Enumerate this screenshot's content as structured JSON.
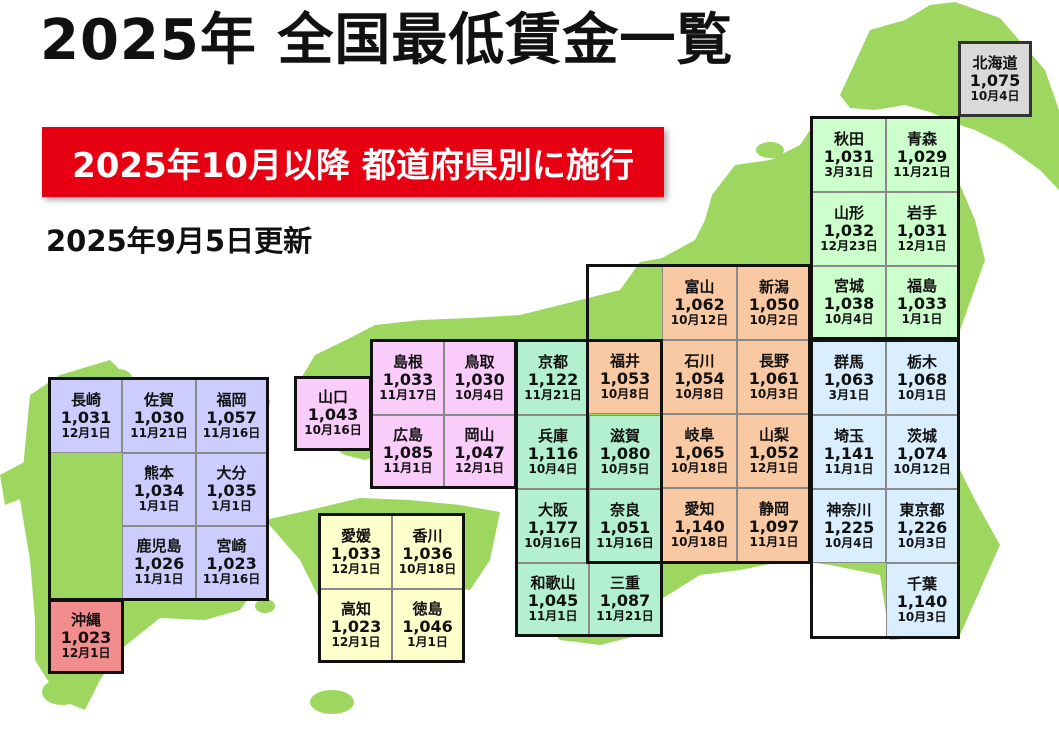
{
  "title": "2025年 全国最低賃金一覧",
  "banner": "2025年10月以降 都道府県別に施行",
  "updated": "2025年9月5日更新",
  "colors": {
    "land": "#9ed75f",
    "banner_red": "#e60012",
    "hokkaido": "#d9d9d9",
    "tohoku": "#ccffcc",
    "chubu": "#f9c9a4",
    "kanto": "#d9efff",
    "kinki": "#b3f0cf",
    "chugoku": "#f9ccf9",
    "shikoku": "#ffffcc",
    "kyushu": "#ccccff",
    "okinawa": "#f28d8d"
  },
  "prefectures": [
    {
      "key": "hokkaido",
      "name": "北海道",
      "wage": "1,075",
      "date": "10月4日",
      "region": "hokkaido"
    },
    {
      "key": "akita",
      "name": "秋田",
      "wage": "1,031",
      "date": "3月31日",
      "region": "tohoku"
    },
    {
      "key": "aomori",
      "name": "青森",
      "wage": "1,029",
      "date": "11月21日",
      "region": "tohoku"
    },
    {
      "key": "yamagata",
      "name": "山形",
      "wage": "1,032",
      "date": "12月23日",
      "region": "tohoku"
    },
    {
      "key": "iwate",
      "name": "岩手",
      "wage": "1,031",
      "date": "12月1日",
      "region": "tohoku"
    },
    {
      "key": "miyagi",
      "name": "宮城",
      "wage": "1,038",
      "date": "10月4日",
      "region": "tohoku"
    },
    {
      "key": "fukushima",
      "name": "福島",
      "wage": "1,033",
      "date": "1月1日",
      "region": "tohoku"
    },
    {
      "key": "toyama",
      "name": "富山",
      "wage": "1,062",
      "date": "10月12日",
      "region": "chubu"
    },
    {
      "key": "niigata",
      "name": "新潟",
      "wage": "1,050",
      "date": "10月2日",
      "region": "chubu"
    },
    {
      "key": "fukui",
      "name": "福井",
      "wage": "1,053",
      "date": "10月8日",
      "region": "chubu"
    },
    {
      "key": "ishikawa",
      "name": "石川",
      "wage": "1,054",
      "date": "10月8日",
      "region": "chubu"
    },
    {
      "key": "nagano",
      "name": "長野",
      "wage": "1,061",
      "date": "10月3日",
      "region": "chubu"
    },
    {
      "key": "gifu",
      "name": "岐阜",
      "wage": "1,065",
      "date": "10月18日",
      "region": "chubu"
    },
    {
      "key": "yamanashi",
      "name": "山梨",
      "wage": "1,052",
      "date": "12月1日",
      "region": "chubu"
    },
    {
      "key": "aichi",
      "name": "愛知",
      "wage": "1,140",
      "date": "10月18日",
      "region": "chubu"
    },
    {
      "key": "shizuoka",
      "name": "静岡",
      "wage": "1,097",
      "date": "11月1日",
      "region": "chubu"
    },
    {
      "key": "gunma",
      "name": "群馬",
      "wage": "1,063",
      "date": "3月1日",
      "region": "kanto"
    },
    {
      "key": "tochigi",
      "name": "栃木",
      "wage": "1,068",
      "date": "10月1日",
      "region": "kanto"
    },
    {
      "key": "saitama",
      "name": "埼玉",
      "wage": "1,141",
      "date": "11月1日",
      "region": "kanto"
    },
    {
      "key": "ibaraki",
      "name": "茨城",
      "wage": "1,074",
      "date": "10月12日",
      "region": "kanto"
    },
    {
      "key": "kanagawa",
      "name": "神奈川",
      "wage": "1,225",
      "date": "10月4日",
      "region": "kanto"
    },
    {
      "key": "tokyo",
      "name": "東京都",
      "wage": "1,226",
      "date": "10月3日",
      "region": "kanto"
    },
    {
      "key": "chiba",
      "name": "千葉",
      "wage": "1,140",
      "date": "10月3日",
      "region": "kanto"
    },
    {
      "key": "kyoto",
      "name": "京都",
      "wage": "1,122",
      "date": "11月21日",
      "region": "kinki"
    },
    {
      "key": "hyogo",
      "name": "兵庫",
      "wage": "1,116",
      "date": "10月4日",
      "region": "kinki"
    },
    {
      "key": "shiga",
      "name": "滋賀",
      "wage": "1,080",
      "date": "10月5日",
      "region": "kinki"
    },
    {
      "key": "osaka",
      "name": "大阪",
      "wage": "1,177",
      "date": "10月16日",
      "region": "kinki"
    },
    {
      "key": "nara",
      "name": "奈良",
      "wage": "1,051",
      "date": "11月16日",
      "region": "kinki"
    },
    {
      "key": "wakayama",
      "name": "和歌山",
      "wage": "1,045",
      "date": "11月1日",
      "region": "kinki"
    },
    {
      "key": "mie",
      "name": "三重",
      "wage": "1,087",
      "date": "11月21日",
      "region": "kinki"
    },
    {
      "key": "shimane",
      "name": "島根",
      "wage": "1,033",
      "date": "11月17日",
      "region": "chugoku"
    },
    {
      "key": "tottori",
      "name": "鳥取",
      "wage": "1,030",
      "date": "10月4日",
      "region": "chugoku"
    },
    {
      "key": "yamaguchi",
      "name": "山口",
      "wage": "1,043",
      "date": "10月16日",
      "region": "chugoku"
    },
    {
      "key": "hiroshima",
      "name": "広島",
      "wage": "1,085",
      "date": "11月1日",
      "region": "chugoku"
    },
    {
      "key": "okayama",
      "name": "岡山",
      "wage": "1,047",
      "date": "12月1日",
      "region": "chugoku"
    },
    {
      "key": "ehime",
      "name": "愛媛",
      "wage": "1,033",
      "date": "12月1日",
      "region": "shikoku"
    },
    {
      "key": "kagawa",
      "name": "香川",
      "wage": "1,036",
      "date": "10月18日",
      "region": "shikoku"
    },
    {
      "key": "kochi",
      "name": "高知",
      "wage": "1,023",
      "date": "12月1日",
      "region": "shikoku"
    },
    {
      "key": "tokushima",
      "name": "徳島",
      "wage": "1,046",
      "date": "1月1日",
      "region": "shikoku"
    },
    {
      "key": "nagasaki",
      "name": "長崎",
      "wage": "1,031",
      "date": "12月1日",
      "region": "kyushu"
    },
    {
      "key": "saga",
      "name": "佐賀",
      "wage": "1,030",
      "date": "11月21日",
      "region": "kyushu"
    },
    {
      "key": "fukuoka",
      "name": "福岡",
      "wage": "1,057",
      "date": "11月16日",
      "region": "kyushu"
    },
    {
      "key": "kumamoto",
      "name": "熊本",
      "wage": "1,034",
      "date": "1月1日",
      "region": "kyushu"
    },
    {
      "key": "oita",
      "name": "大分",
      "wage": "1,035",
      "date": "1月1日",
      "region": "kyushu"
    },
    {
      "key": "kagoshima",
      "name": "鹿児島",
      "wage": "1,026",
      "date": "11月1日",
      "region": "kyushu"
    },
    {
      "key": "miyazaki",
      "name": "宮崎",
      "wage": "1,023",
      "date": "11月16日",
      "region": "kyushu"
    },
    {
      "key": "okinawa",
      "name": "沖縄",
      "wage": "1,023",
      "date": "12月1日",
      "region": "okinawa"
    }
  ]
}
